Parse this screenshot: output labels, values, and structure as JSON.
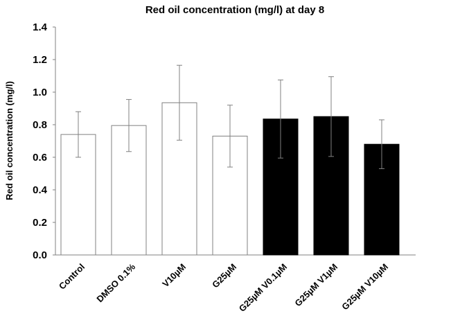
{
  "chart_data": {
    "type": "bar",
    "title": "Red oil concentration (mg/l) at day 8",
    "xlabel": "",
    "ylabel": "Red oil concentration (mg/l)",
    "ylim": [
      0,
      1.4
    ],
    "yticks": [
      "0.0",
      "0.2",
      "0.4",
      "0.6",
      "0.8",
      "1.0",
      "1.2",
      "1.4"
    ],
    "grid": false,
    "categories": [
      "Control",
      "DMSO 0.1%",
      "V10µM",
      "G25µM",
      "G25µM V0.1µM",
      "G25µM V1µM",
      "G25µM V10µM"
    ],
    "values": [
      0.74,
      0.795,
      0.935,
      0.73,
      0.835,
      0.85,
      0.68
    ],
    "error": [
      0.14,
      0.16,
      0.23,
      0.19,
      0.24,
      0.245,
      0.15
    ],
    "bar_colors": [
      "#ffffff",
      "#ffffff",
      "#ffffff",
      "#ffffff",
      "#000000",
      "#000000",
      "#000000"
    ]
  }
}
